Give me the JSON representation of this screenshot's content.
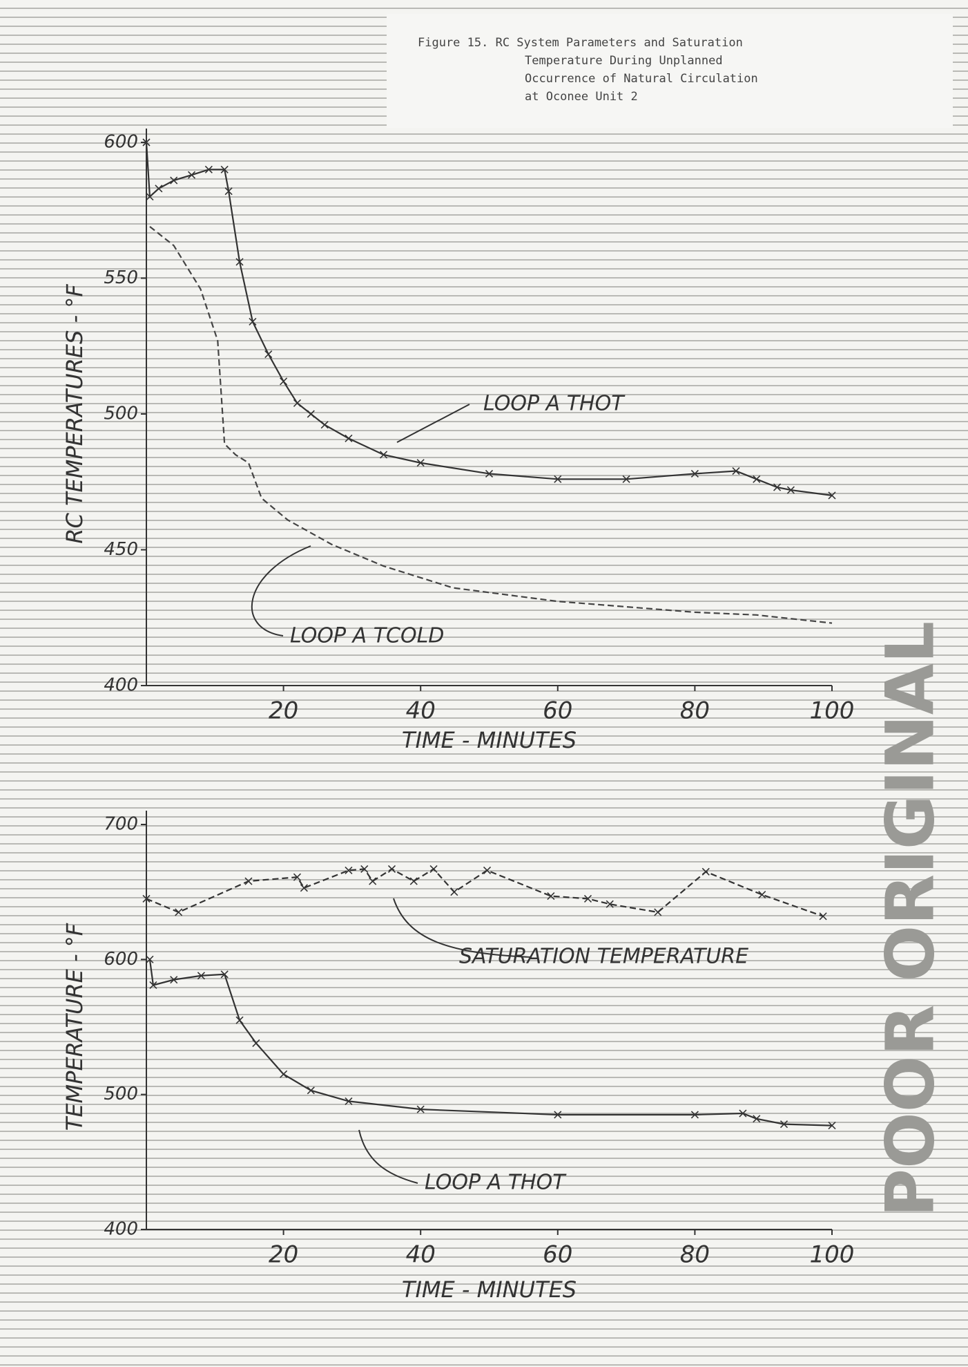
{
  "caption": {
    "lines": [
      "Figure 15. RC System Parameters and Saturation",
      "Temperature During Unplanned",
      "Occurrence of Natural Circulation",
      "at Oconee Unit 2"
    ]
  },
  "stamp": "POOR ORIGINAL",
  "chart_data": [
    {
      "type": "line",
      "ylabel": "RC TEMPERATURES - °F",
      "xlabel": "TIME - MINUTES",
      "xlim": [
        0,
        100
      ],
      "ylim": [
        400,
        600
      ],
      "xticks": [
        20,
        40,
        60,
        80,
        100
      ],
      "yticks": [
        400,
        450,
        500,
        550,
        600
      ],
      "series": [
        {
          "name": "LOOP A THOT",
          "color": "#333333",
          "dashed": false,
          "markers": true,
          "x": [
            0,
            0.5,
            1.8,
            4,
            6.6,
            9.1,
            11.4,
            12,
            13.6,
            15.5,
            17.8,
            20,
            22,
            24,
            26,
            29.5,
            34.6,
            40,
            50,
            60,
            70,
            80,
            86,
            89,
            92,
            94,
            100
          ],
          "values": [
            600,
            580,
            583,
            586,
            588,
            590,
            590,
            582,
            556,
            534,
            522,
            512,
            504,
            500,
            496,
            491,
            485,
            482,
            478,
            476,
            476,
            478,
            479,
            476,
            473,
            472,
            470
          ]
        },
        {
          "name": "LOOP A TCOLD",
          "color": "#444444",
          "dashed": true,
          "markers": false,
          "x": [
            0.5,
            4,
            7.9,
            10.4,
            11.4,
            13,
            14.9,
            16.8,
            20.6,
            27,
            34.6,
            44.7,
            60,
            80,
            89,
            100
          ],
          "values": [
            569,
            562,
            546,
            527,
            489,
            485,
            482,
            469,
            461,
            452,
            444,
            436,
            431,
            427,
            426,
            423
          ]
        }
      ]
    },
    {
      "type": "line",
      "ylabel": "TEMPERATURE - °F",
      "xlabel": "TIME - MINUTES",
      "xlim": [
        0,
        100
      ],
      "ylim": [
        400,
        700
      ],
      "xticks": [
        20,
        40,
        60,
        80,
        100
      ],
      "yticks": [
        400,
        500,
        600,
        700
      ],
      "series": [
        {
          "name": "SATURATION TEMPERATURE",
          "color": "#333333",
          "dashed": true,
          "markers": true,
          "x": [
            0,
            4.7,
            14.9,
            22,
            23,
            29.5,
            31.8,
            33,
            35.8,
            39,
            41.9,
            44.9,
            49.7,
            59,
            64.4,
            67.6,
            74.6,
            81.6,
            89.8,
            98.7
          ],
          "values": [
            645,
            635,
            658,
            661,
            653,
            666,
            667,
            658,
            667,
            658,
            667,
            650,
            666,
            647,
            645,
            641,
            635,
            665,
            648,
            632
          ]
        },
        {
          "name": "LOOP A THOT",
          "color": "#333333",
          "dashed": false,
          "markers": true,
          "x": [
            0.5,
            1,
            4,
            8,
            11.4,
            13.6,
            16,
            20,
            24,
            29.5,
            40,
            60,
            80,
            87,
            89,
            93,
            100
          ],
          "values": [
            600,
            581,
            585,
            588,
            589,
            555,
            538,
            515,
            503,
            495,
            489,
            485,
            485,
            486,
            482,
            478,
            477
          ]
        }
      ]
    }
  ]
}
